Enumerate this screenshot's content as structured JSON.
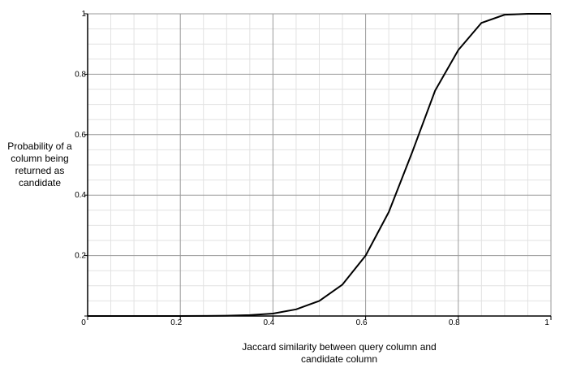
{
  "chart_data": {
    "type": "line",
    "x_label": "Jaccard similarity between query column and candidate column",
    "y_label": "Probability of a column being returned as candidate",
    "x": [
      0,
      0.05,
      0.1,
      0.15,
      0.2,
      0.25,
      0.3,
      0.35,
      0.4,
      0.45,
      0.5,
      0.55,
      0.6,
      0.65,
      0.7,
      0.75,
      0.8,
      0.85,
      0.9,
      0.95,
      1
    ],
    "values": [
      0,
      0,
      0,
      0,
      0,
      0.0002,
      0.0009,
      0.003,
      0.008,
      0.022,
      0.05,
      0.104,
      0.2,
      0.344,
      0.54,
      0.746,
      0.88,
      0.97,
      0.997,
      1,
      1
    ],
    "color": "#000000",
    "xlim": [
      0,
      1
    ],
    "ylim": [
      0,
      1
    ],
    "xticks": [
      0,
      0.2,
      0.4,
      0.6,
      0.8,
      1
    ],
    "yticks": [
      0,
      0.2,
      0.4,
      0.6,
      0.8,
      1
    ],
    "grid": true
  }
}
